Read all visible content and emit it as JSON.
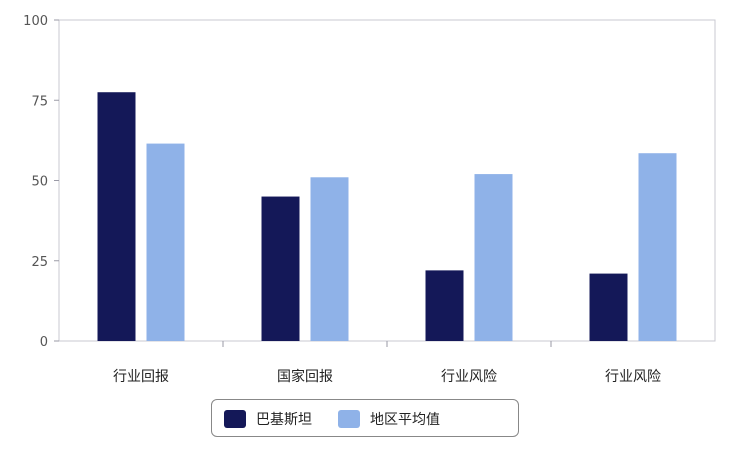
{
  "chart_data": {
    "type": "bar",
    "categories": [
      "行业回报",
      "国家回报",
      "行业风险",
      "行业风险"
    ],
    "series": [
      {
        "name": "巴基斯坦",
        "color": "#141858",
        "values": [
          77.5,
          45,
          22,
          21
        ]
      },
      {
        "name": "地区平均值",
        "color": "#8fb2e8",
        "values": [
          61.5,
          51,
          52,
          58.5
        ]
      }
    ],
    "ylim": [
      0,
      100
    ],
    "yticks": [
      0,
      25,
      50,
      75,
      100
    ],
    "title": "",
    "xlabel": "",
    "ylabel": "",
    "grid": false,
    "legend_position": "bottom-center"
  }
}
